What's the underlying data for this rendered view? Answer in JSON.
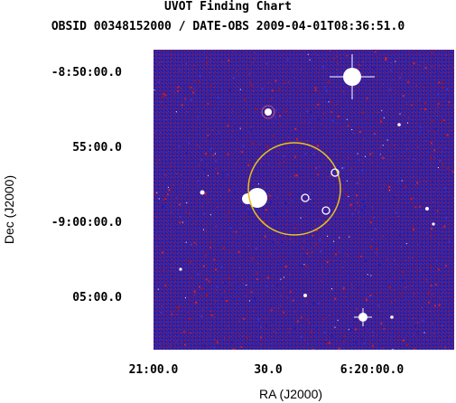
{
  "header": {
    "title": "UVOT Finding Chart",
    "subtitle": "OBSID 00348152000 / DATE-OBS 2009-04-01T08:36:51.0"
  },
  "axes": {
    "xlabel": "RA (J2000)",
    "ylabel": "Dec (J2000)",
    "x_ticks": [
      "21:00.0",
      "30.0",
      "6:20:00.0"
    ],
    "y_ticks": [
      "-8:50:00.0",
      "55:00.0",
      "-9:00:00.0",
      "05:00.0"
    ]
  },
  "colors": {
    "background_blue": "#2a28c8",
    "background_red": "#c81e1e",
    "circle": "#e8c020",
    "source": "#ffffff"
  }
}
